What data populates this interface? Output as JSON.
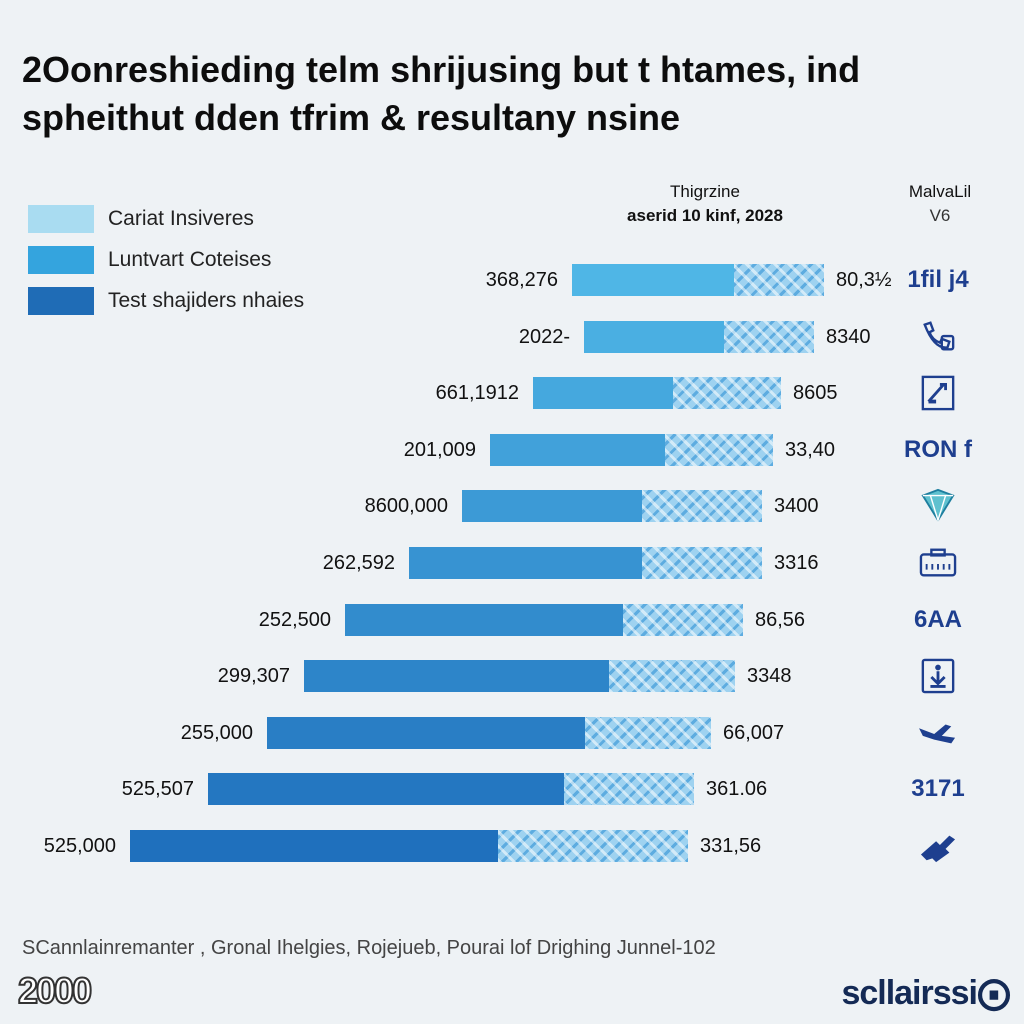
{
  "title": {
    "line1": "2Oonreshieding telm shrijusing but t htames, ind",
    "line2": "spheithut dden tfrim & resultany nsine"
  },
  "legend": [
    {
      "label": "Cariat Insiveres",
      "color": "#a9dcf1"
    },
    {
      "label": "Luntvart Coteises",
      "color": "#34a4de"
    },
    {
      "label": "Test shajiders nhaies",
      "color": "#1f6cb6"
    }
  ],
  "column_headers": {
    "center": {
      "line1": "Thigrzine",
      "line2": "aserid 10 kinf, 2028"
    },
    "right": {
      "line1": "MalvaLil",
      "line2": "V6"
    }
  },
  "chart_data": {
    "type": "bar",
    "orientation": "horizontal",
    "stacked": true,
    "series_names": [
      "Solid segment",
      "Patterned segment"
    ],
    "rows": [
      {
        "label": "368,276",
        "solid": 162,
        "pattern": 90,
        "value_label": "80,3½",
        "glyph": "1ﬁl j4",
        "icon": "text"
      },
      {
        "label": "2022-",
        "solid": 140,
        "pattern": 90,
        "value_label": "8340",
        "glyph": "phone-icon",
        "icon": "phone"
      },
      {
        "label": "661,1912",
        "solid": 140,
        "pattern": 108,
        "value_label": "8605",
        "glyph": "edit-document-icon",
        "icon": "doc"
      },
      {
        "label": "201,009",
        "solid": 175,
        "pattern": 108,
        "value_label": "33,40",
        "glyph": "RON f",
        "icon": "text"
      },
      {
        "label": "8600,000",
        "solid": 180,
        "pattern": 120,
        "value_label": "3400",
        "glyph": "diamond-pin-icon",
        "icon": "diamond"
      },
      {
        "label": "262,592",
        "solid": 233,
        "pattern": 120,
        "value_label": "3316",
        "glyph": "briefcase-icon",
        "icon": "briefcase"
      },
      {
        "label": "252,500",
        "solid": 278,
        "pattern": 120,
        "value_label": "86,56",
        "glyph": "6AA",
        "icon": "text"
      },
      {
        "label": "299,307",
        "solid": 305,
        "pattern": 126,
        "value_label": "3348",
        "glyph": "download-icon",
        "icon": "download"
      },
      {
        "label": "255,000",
        "solid": 318,
        "pattern": 126,
        "value_label": "66,007",
        "glyph": "plane-icon",
        "icon": "plane"
      },
      {
        "label": "525,507",
        "solid": 356,
        "pattern": 130,
        "value_label": "361.06",
        "glyph": "3171",
        "icon": "text"
      },
      {
        "label": "525,000",
        "solid": 368,
        "pattern": 190,
        "value_label": "331,56",
        "glyph": "key-icon",
        "icon": "key"
      }
    ],
    "axis": {
      "xlim": [
        0,
        700
      ]
    }
  },
  "source": "SCannlainremanter , Gronal Ihelgies, Rojejueb, Pourai lof Drighing Junnel-102",
  "logo_left": "2000",
  "logo_right": "scllairssi⨀"
}
